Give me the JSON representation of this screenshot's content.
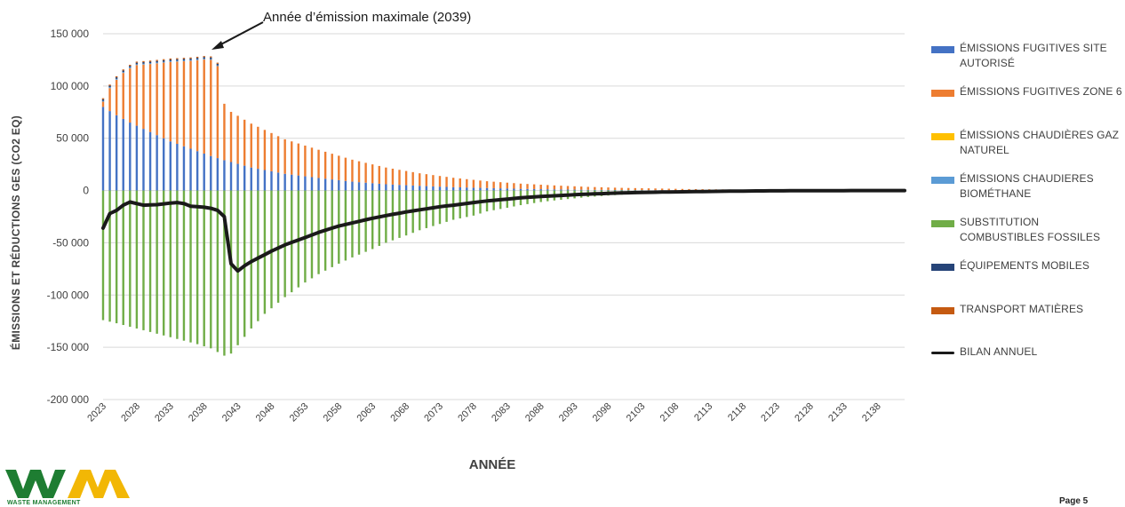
{
  "colors": {
    "fugitive_site": "#4472C4",
    "fugitive_zone6": "#ED7D31",
    "chaudieres_gaz": "#FFC000",
    "chaudieres_bio": "#5B9BD5",
    "substitution": "#70AD47",
    "equipements": "#264478",
    "transport": "#C55A11",
    "bilan": "#1a1a1a",
    "logo_green": "#1e7d32",
    "logo_yellow": "#f2b705"
  },
  "legend": [
    {
      "label": "ÉMISSIONS FUGITIVES SITE AUTORISÉ",
      "color_key": "fugitive_site",
      "kind": "bar"
    },
    {
      "label": "ÉMISSIONS FUGITIVES ZONE 6",
      "color_key": "fugitive_zone6",
      "kind": "bar"
    },
    {
      "label": "ÉMISSIONS CHAUDIÈRES GAZ NATUREL",
      "color_key": "chaudieres_gaz",
      "kind": "bar"
    },
    {
      "label": "ÉMISSIONS CHAUDIERES BIOMÉTHANE",
      "color_key": "chaudieres_bio",
      "kind": "bar"
    },
    {
      "label": "SUBSTITUTION COMBUSTIBLES FOSSILES",
      "color_key": "substitution",
      "kind": "bar"
    },
    {
      "label": "ÉQUIPEMENTS MOBILES",
      "color_key": "equipements",
      "kind": "bar"
    },
    {
      "label": "TRANSPORT MATIÈRES",
      "color_key": "transport",
      "kind": "bar"
    },
    {
      "label": "BILAN ANNUEL",
      "color_key": "bilan",
      "kind": "line"
    }
  ],
  "logo": {
    "text": "WM",
    "tagline": "WASTE MANAGEMENT"
  },
  "page_label": "Page 5",
  "chart_data": {
    "type": "bar",
    "stacked": true,
    "annotation": {
      "text": "Année d’émission maximale (2039)",
      "year": 2039
    },
    "xlabel": "ANNÉE",
    "ylabel": "ÉMISSIONS ET RÉDUCTIONS GES (CO2 EQ)",
    "ylim": [
      -200000,
      150000
    ],
    "yticks": [
      150000,
      100000,
      50000,
      0,
      -50000,
      -100000,
      -150000,
      -200000
    ],
    "ytick_labels": [
      "150 000",
      "100 000",
      "50 000",
      "0",
      "-50 000",
      "-100 000",
      "-150 000",
      "-200 000"
    ],
    "x_start": 2023,
    "x_end": 2142,
    "xticks": [
      2023,
      2028,
      2033,
      2038,
      2043,
      2048,
      2053,
      2058,
      2063,
      2068,
      2073,
      2078,
      2083,
      2088,
      2093,
      2098,
      2103,
      2108,
      2113,
      2118,
      2123,
      2128,
      2133,
      2138
    ],
    "grid": true,
    "legend_position": "right",
    "series": [
      {
        "name": "ÉMISSIONS FUGITIVES SITE AUTORISÉ",
        "color_key": "fugitive_site",
        "description": "site autorisé fugitive emissions per year",
        "keypoints": [
          [
            2023,
            80000
          ],
          [
            2025,
            72000
          ],
          [
            2027,
            65000
          ],
          [
            2030,
            56000
          ],
          [
            2033,
            47000
          ],
          [
            2036,
            40000
          ],
          [
            2039,
            33000
          ],
          [
            2040,
            31000
          ],
          [
            2041,
            29000
          ],
          [
            2045,
            22000
          ],
          [
            2050,
            16000
          ],
          [
            2055,
            12000
          ],
          [
            2060,
            8500
          ],
          [
            2065,
            6000
          ],
          [
            2070,
            4500
          ],
          [
            2075,
            3200
          ],
          [
            2080,
            2400
          ],
          [
            2085,
            1600
          ],
          [
            2090,
            1100
          ],
          [
            2095,
            700
          ],
          [
            2100,
            450
          ],
          [
            2110,
            200
          ],
          [
            2120,
            80
          ],
          [
            2130,
            30
          ],
          [
            2142,
            0
          ]
        ]
      },
      {
        "name": "ÉMISSIONS FUGITIVES ZONE 6",
        "color_key": "fugitive_zone6",
        "keypoints": [
          [
            2023,
            5000
          ],
          [
            2024,
            22000
          ],
          [
            2025,
            34000
          ],
          [
            2026,
            44000
          ],
          [
            2027,
            52000
          ],
          [
            2028,
            58000
          ],
          [
            2030,
            65000
          ],
          [
            2033,
            76000
          ],
          [
            2036,
            84000
          ],
          [
            2038,
            90000
          ],
          [
            2039,
            92000
          ],
          [
            2040,
            88000
          ],
          [
            2041,
            54000
          ],
          [
            2042,
            48000
          ],
          [
            2045,
            42000
          ],
          [
            2050,
            33000
          ],
          [
            2055,
            27000
          ],
          [
            2060,
            21000
          ],
          [
            2065,
            16000
          ],
          [
            2070,
            12000
          ],
          [
            2075,
            9000
          ],
          [
            2080,
            6500
          ],
          [
            2085,
            5000
          ],
          [
            2090,
            3800
          ],
          [
            2095,
            2800
          ],
          [
            2100,
            2100
          ],
          [
            2110,
            1200
          ],
          [
            2120,
            600
          ],
          [
            2130,
            300
          ],
          [
            2142,
            100
          ]
        ]
      },
      {
        "name": "ÉMISSIONS CHAUDIÈRES GAZ NATUREL",
        "color_key": "chaudieres_gaz",
        "keypoints": [
          [
            2023,
            0
          ],
          [
            2142,
            0
          ]
        ]
      },
      {
        "name": "ÉMISSIONS CHAUDIERES BIOMÉTHANE",
        "color_key": "chaudieres_bio",
        "keypoints": [
          [
            2023,
            800
          ],
          [
            2040,
            800
          ],
          [
            2041,
            0
          ],
          [
            2142,
            0
          ]
        ]
      },
      {
        "name": "SUBSTITUTION COMBUSTIBLES FOSSILES",
        "color_key": "substitution",
        "keypoints": [
          [
            2023,
            -124000
          ],
          [
            2025,
            -127000
          ],
          [
            2028,
            -132000
          ],
          [
            2031,
            -137000
          ],
          [
            2034,
            -142000
          ],
          [
            2037,
            -147000
          ],
          [
            2039,
            -151000
          ],
          [
            2041,
            -158000
          ],
          [
            2042,
            -156000
          ],
          [
            2043,
            -148000
          ],
          [
            2045,
            -132000
          ],
          [
            2047,
            -118000
          ],
          [
            2050,
            -102000
          ],
          [
            2053,
            -88000
          ],
          [
            2055,
            -80000
          ],
          [
            2058,
            -70000
          ],
          [
            2060,
            -64000
          ],
          [
            2063,
            -56000
          ],
          [
            2065,
            -50000
          ],
          [
            2068,
            -43000
          ],
          [
            2070,
            -38000
          ],
          [
            2073,
            -32000
          ],
          [
            2075,
            -28000
          ],
          [
            2078,
            -24000
          ],
          [
            2080,
            -20000
          ],
          [
            2083,
            -16500
          ],
          [
            2085,
            -14000
          ],
          [
            2088,
            -11000
          ],
          [
            2090,
            -9500
          ],
          [
            2093,
            -7500
          ],
          [
            2095,
            -6200
          ],
          [
            2098,
            -4800
          ],
          [
            2100,
            -4000
          ],
          [
            2105,
            -2700
          ],
          [
            2110,
            -1800
          ],
          [
            2115,
            -1100
          ],
          [
            2120,
            -700
          ],
          [
            2125,
            -400
          ],
          [
            2130,
            -200
          ],
          [
            2142,
            0
          ]
        ]
      },
      {
        "name": "ÉQUIPEMENTS MOBILES",
        "color_key": "equipements",
        "keypoints": [
          [
            2023,
            1500
          ],
          [
            2040,
            1500
          ],
          [
            2041,
            0
          ],
          [
            2142,
            0
          ]
        ]
      },
      {
        "name": "TRANSPORT MATIÈRES",
        "color_key": "transport",
        "keypoints": [
          [
            2023,
            1000
          ],
          [
            2040,
            1000
          ],
          [
            2041,
            0
          ],
          [
            2142,
            0
          ]
        ]
      },
      {
        "name": "BILAN ANNUEL",
        "color_key": "bilan",
        "type": "line",
        "keypoints": [
          [
            2023,
            -36000
          ],
          [
            2024,
            -22000
          ],
          [
            2025,
            -19000
          ],
          [
            2026,
            -14000
          ],
          [
            2027,
            -11000
          ],
          [
            2028,
            -12500
          ],
          [
            2029,
            -14000
          ],
          [
            2031,
            -13500
          ],
          [
            2033,
            -12000
          ],
          [
            2034,
            -11500
          ],
          [
            2035,
            -12500
          ],
          [
            2036,
            -15000
          ],
          [
            2038,
            -16000
          ],
          [
            2039,
            -17000
          ],
          [
            2040,
            -19000
          ],
          [
            2041,
            -25000
          ],
          [
            2042,
            -70000
          ],
          [
            2043,
            -77000
          ],
          [
            2044,
            -72000
          ],
          [
            2045,
            -68000
          ],
          [
            2048,
            -58000
          ],
          [
            2050,
            -52000
          ],
          [
            2053,
            -45000
          ],
          [
            2055,
            -40000
          ],
          [
            2058,
            -34000
          ],
          [
            2060,
            -31000
          ],
          [
            2063,
            -26500
          ],
          [
            2065,
            -24000
          ],
          [
            2068,
            -20500
          ],
          [
            2070,
            -18500
          ],
          [
            2073,
            -15500
          ],
          [
            2075,
            -14000
          ],
          [
            2078,
            -11500
          ],
          [
            2080,
            -10000
          ],
          [
            2083,
            -8200
          ],
          [
            2085,
            -7000
          ],
          [
            2088,
            -5700
          ],
          [
            2090,
            -5000
          ],
          [
            2093,
            -4000
          ],
          [
            2095,
            -3400
          ],
          [
            2100,
            -2300
          ],
          [
            2105,
            -1600
          ],
          [
            2110,
            -1100
          ],
          [
            2115,
            -700
          ],
          [
            2120,
            -400
          ],
          [
            2125,
            -200
          ],
          [
            2130,
            -100
          ],
          [
            2142,
            0
          ]
        ]
      }
    ]
  }
}
